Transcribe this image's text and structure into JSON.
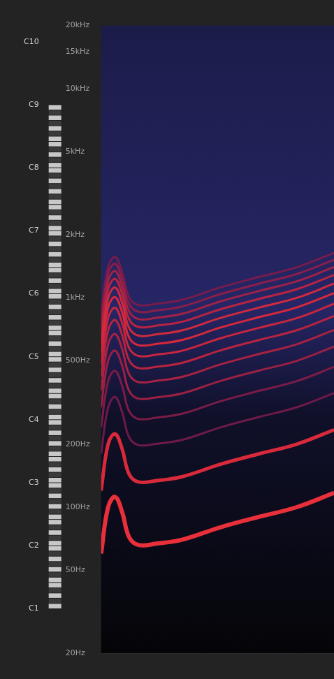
{
  "chart_data": {
    "type": "line",
    "log": "y",
    "grid": false,
    "tick_labels": "y",
    "x": [
      0,
      3,
      6,
      9,
      12,
      16,
      24,
      35,
      51,
      68,
      84,
      100
    ],
    "xlim": [
      0,
      100
    ],
    "ylim": [
      20,
      20000
    ],
    "yticks": [
      {
        "value": 20,
        "label": "20Hz"
      },
      {
        "value": 50,
        "label": "50Hz"
      },
      {
        "value": 100,
        "label": "100Hz"
      },
      {
        "value": 200,
        "label": "200Hz"
      },
      {
        "value": 500,
        "label": "500Hz"
      },
      {
        "value": 1000,
        "label": "1kHz"
      },
      {
        "value": 2000,
        "label": "2kHz"
      },
      {
        "value": 5000,
        "label": "5kHz"
      },
      {
        "value": 10000,
        "label": "10kHz"
      },
      {
        "value": 15000,
        "label": "15kHz"
      },
      {
        "value": 20000,
        "label": "20kHz"
      }
    ],
    "y2lim": [
      20,
      20000
    ],
    "y2ticks": [
      {
        "value": 32.7,
        "label": "C1"
      },
      {
        "value": 65.41,
        "label": "C2"
      },
      {
        "value": 130.81,
        "label": "C3"
      },
      {
        "value": 261.63,
        "label": "C4"
      },
      {
        "value": 523.25,
        "label": "C5"
      },
      {
        "value": 1046.5,
        "label": "C6"
      },
      {
        "value": 2093,
        "label": "C7"
      },
      {
        "value": 4186,
        "label": "C8"
      },
      {
        "value": 8372,
        "label": "C9"
      },
      {
        "value": 16744,
        "label": "C10"
      }
    ],
    "series": [
      {
        "color": "#e8303a",
        "values": [
          60,
          100,
          112,
          95,
          72,
          66,
          67,
          70,
          80,
          90,
          100,
          117
        ]
      },
      {
        "color": "#d82a3a",
        "values": [
          120,
          200,
          224,
          190,
          144,
          132,
          134,
          140,
          160,
          180,
          200,
          234
        ]
      },
      {
        "color": "#6e1a48",
        "values": [
          180,
          300,
          336,
          285,
          216,
          198,
          201,
          210,
          240,
          270,
          300,
          351
        ]
      },
      {
        "color": "#7a1c46",
        "values": [
          240,
          400,
          448,
          380,
          288,
          264,
          268,
          280,
          320,
          360,
          400,
          468
        ]
      },
      {
        "color": "#9a2044",
        "values": [
          300,
          500,
          560,
          475,
          360,
          330,
          335,
          350,
          400,
          450,
          500,
          585
        ]
      },
      {
        "color": "#a82242",
        "values": [
          360,
          600,
          672,
          570,
          432,
          396,
          402,
          420,
          480,
          540,
          600,
          702
        ]
      },
      {
        "color": "#b82440",
        "values": [
          420,
          700,
          784,
          665,
          504,
          462,
          469,
          490,
          560,
          630,
          700,
          819
        ]
      },
      {
        "color": "#c8263e",
        "values": [
          480,
          800,
          896,
          760,
          576,
          528,
          536,
          560,
          640,
          720,
          800,
          936
        ]
      },
      {
        "color": "#d8283c",
        "values": [
          540,
          900,
          1008,
          855,
          648,
          594,
          603,
          630,
          720,
          810,
          900,
          1053
        ]
      },
      {
        "color": "#d02a3e",
        "values": [
          600,
          1000,
          1120,
          950,
          720,
          660,
          670,
          700,
          800,
          900,
          1000,
          1170
        ]
      },
      {
        "color": "#b82442",
        "values": [
          660,
          1100,
          1232,
          1045,
          792,
          726,
          737,
          770,
          880,
          990,
          1100,
          1287
        ]
      },
      {
        "color": "#a02246",
        "values": [
          720,
          1200,
          1344,
          1140,
          864,
          792,
          804,
          840,
          960,
          1080,
          1200,
          1404
        ]
      },
      {
        "color": "#8a1e4a",
        "values": [
          780,
          1300,
          1456,
          1235,
          936,
          858,
          871,
          910,
          1040,
          1170,
          1300,
          1521
        ]
      },
      {
        "color": "#761c4c",
        "values": [
          840,
          1400,
          1568,
          1330,
          1008,
          924,
          938,
          980,
          1120,
          1260,
          1400,
          1638
        ]
      }
    ]
  }
}
